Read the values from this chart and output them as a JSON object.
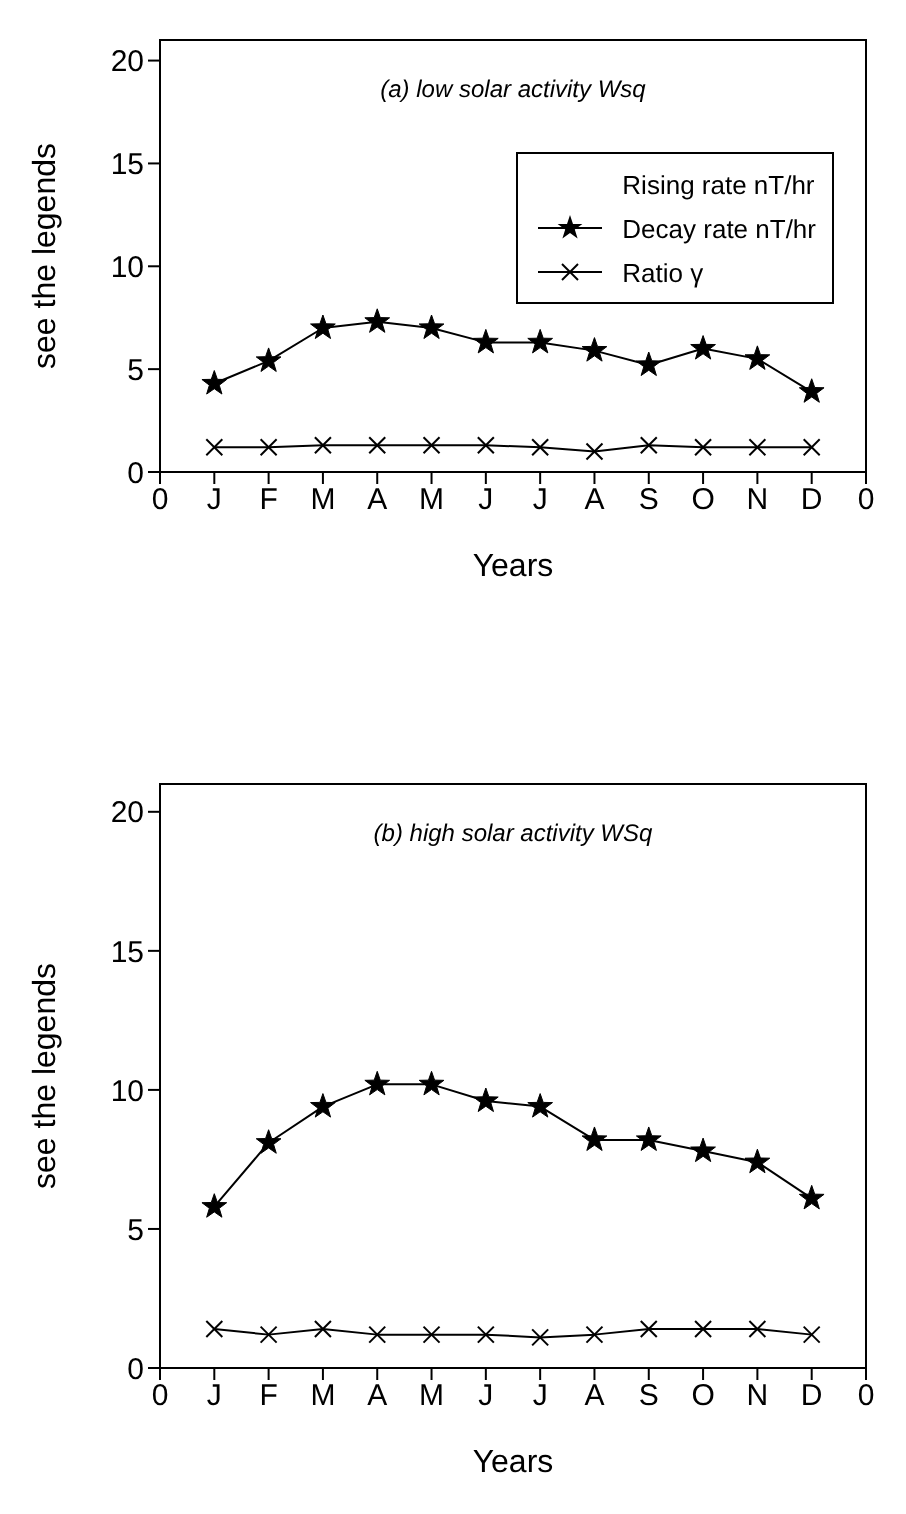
{
  "chart_data": [
    {
      "type": "line",
      "title": "(a) low solar activity Wsq",
      "xlabel": "Years",
      "ylabel": "see the legends",
      "categories": [
        "0",
        "J",
        "F",
        "M",
        "A",
        "M",
        "J",
        "J",
        "A",
        "S",
        "O",
        "N",
        "D",
        "0"
      ],
      "ylim": [
        0,
        21
      ],
      "yticks": [
        0,
        5,
        10,
        15,
        20
      ],
      "legend": "top right",
      "series": [
        {
          "name": "Rising rate nT/hr",
          "marker": "none",
          "values": [
            null,
            null,
            null,
            null,
            null,
            null,
            null,
            null,
            null,
            null,
            null,
            null,
            null,
            null
          ]
        },
        {
          "name": "Decay rate nT/hr",
          "color": "#000000",
          "line_style": "solid",
          "marker": "star",
          "values": [
            null,
            4.3,
            5.4,
            7.0,
            7.3,
            7.0,
            6.3,
            6.3,
            5.9,
            5.2,
            6.0,
            5.5,
            3.9,
            null
          ]
        },
        {
          "name": "Ratio γ",
          "color": "#000000",
          "line_style": "solid",
          "marker": "cross",
          "values": [
            null,
            1.2,
            1.2,
            1.3,
            1.3,
            1.3,
            1.3,
            1.2,
            1.0,
            1.3,
            1.2,
            1.2,
            1.2,
            null
          ]
        }
      ]
    },
    {
      "type": "line",
      "title": "(b) high solar activity WSq",
      "xlabel": "Years",
      "ylabel": "see the legends",
      "categories": [
        "0",
        "J",
        "F",
        "M",
        "A",
        "M",
        "J",
        "J",
        "A",
        "S",
        "O",
        "N",
        "D",
        "0"
      ],
      "ylim": [
        0,
        21
      ],
      "yticks": [
        0,
        5,
        10,
        15,
        20
      ],
      "series": [
        {
          "color": "#000000",
          "line_style": "solid",
          "marker": "star",
          "values": [
            null,
            5.8,
            8.1,
            9.4,
            10.2,
            10.2,
            9.6,
            9.4,
            8.2,
            8.2,
            7.8,
            7.4,
            6.1,
            null
          ]
        },
        {
          "color": "#000000",
          "line_style": "solid",
          "marker": "cross",
          "values": [
            null,
            1.4,
            1.2,
            1.4,
            1.2,
            1.2,
            1.2,
            1.1,
            1.2,
            1.4,
            1.4,
            1.4,
            1.2,
            null
          ]
        }
      ]
    }
  ]
}
